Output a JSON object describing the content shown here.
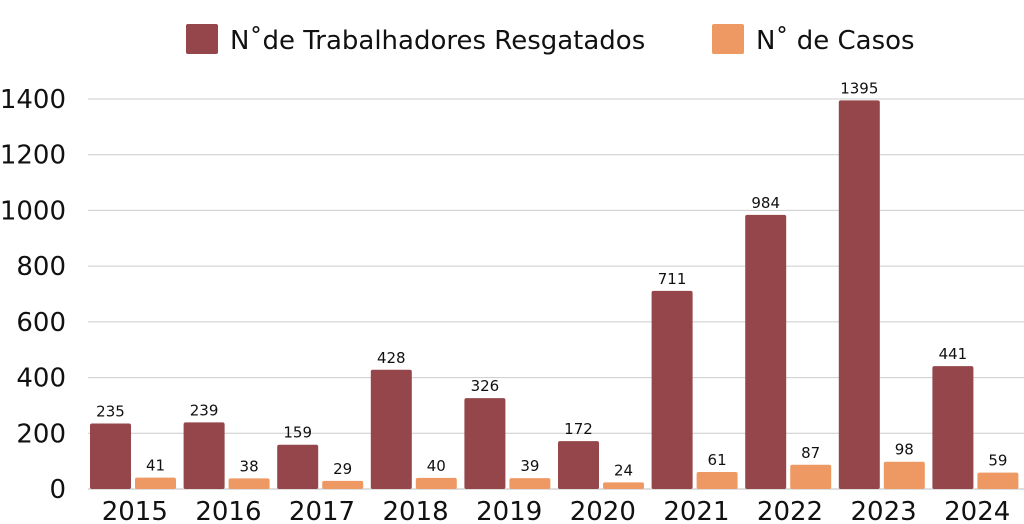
{
  "chart_data": {
    "type": "bar",
    "title": "",
    "xlabel": "",
    "ylabel": "",
    "ylim": [
      0,
      1400
    ],
    "yticks": [
      0,
      200,
      400,
      600,
      800,
      1000,
      1200,
      1400
    ],
    "grid": true,
    "legend_position": "top-center",
    "categories": [
      "2015",
      "2016",
      "2017",
      "2018",
      "2019",
      "2020",
      "2021",
      "2022",
      "2023",
      "2024"
    ],
    "series": [
      {
        "name": "N˚de Trabalhadores Resgatados",
        "color": "#94464A",
        "values": [
          235,
          239,
          159,
          428,
          326,
          172,
          711,
          984,
          1395,
          441
        ]
      },
      {
        "name": "N˚ de Casos",
        "color": "#EE9964",
        "values": [
          41,
          38,
          29,
          40,
          39,
          24,
          61,
          87,
          98,
          59
        ]
      }
    ]
  }
}
